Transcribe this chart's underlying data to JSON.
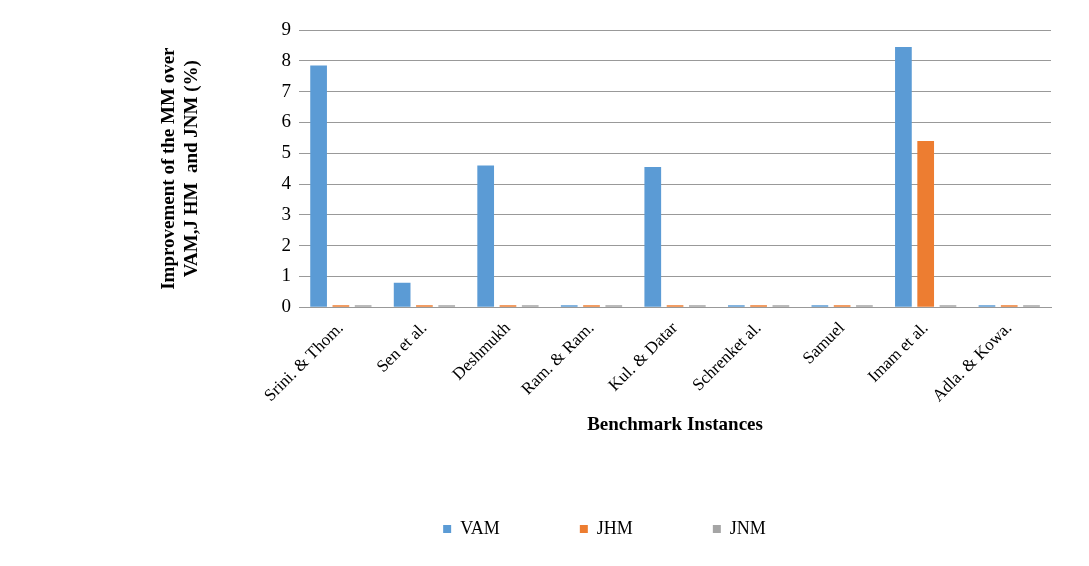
{
  "chart_data": {
    "type": "bar",
    "xlabel": "Benchmark Instances",
    "ylabel": "Improvement of the MM over\nVAM,J HM  and JNM (%)",
    "categories": [
      "Srini. & Thom.",
      "Sen et al.",
      "Deshmukh",
      "Ram. & Ram.",
      "Kul. & Datar",
      "Schrenket al.",
      "Samuel",
      "Imam et al.",
      "Adla. & Kowa."
    ],
    "series": [
      {
        "name": "VAM",
        "color": "#5b9bd5",
        "values": [
          7.85,
          0.8,
          4.6,
          0,
          4.55,
          0,
          0,
          8.45,
          0
        ]
      },
      {
        "name": "JHM",
        "color": "#ed7d31",
        "values": [
          0,
          0,
          0,
          0,
          0,
          0,
          0,
          5.4,
          0
        ]
      },
      {
        "name": "JNM",
        "color": "#a5a5a5",
        "values": [
          0,
          0,
          0,
          0,
          0,
          0,
          0,
          0,
          0
        ]
      }
    ],
    "ylim": [
      0,
      9
    ],
    "yticks": [
      0,
      1,
      2,
      3,
      4,
      5,
      6,
      7,
      8,
      9
    ],
    "grid": "y",
    "legend": "bottom"
  }
}
